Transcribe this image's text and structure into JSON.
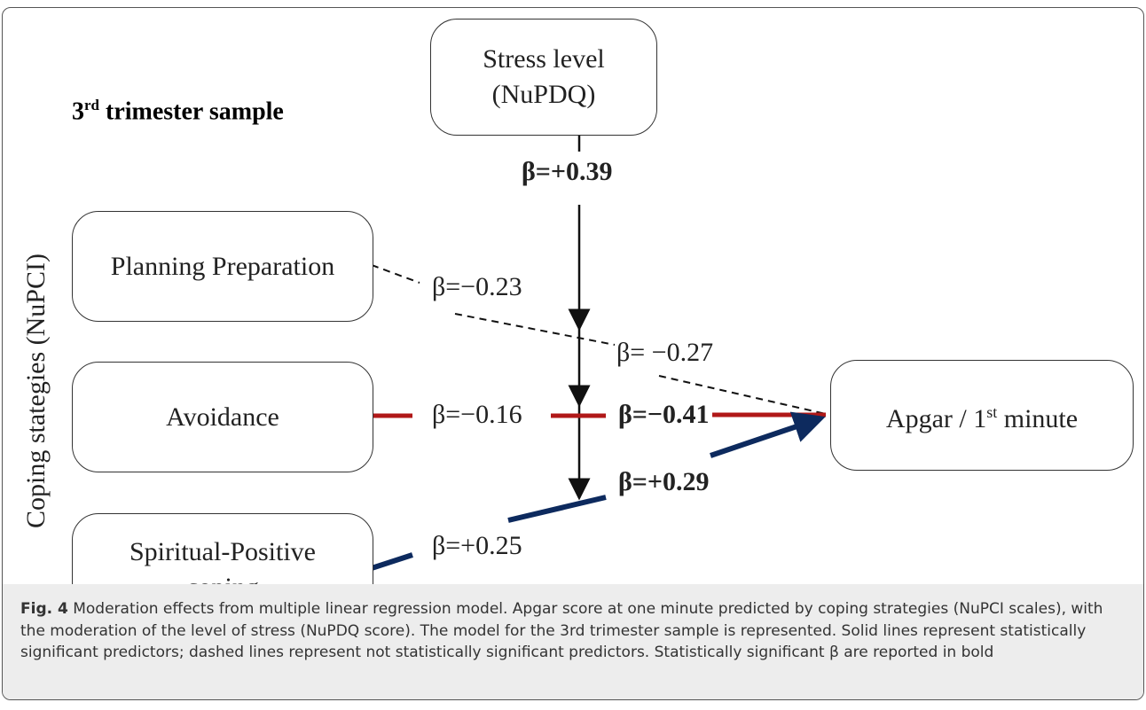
{
  "title": {
    "number": "3",
    "sup": "rd",
    "rest": " trimester sample"
  },
  "side_label": "Coping stategies (NuPCI)",
  "nodes": [
    {
      "lines": [
        "Stress level",
        "(NuPDQ)"
      ]
    },
    {
      "lines": [
        "Planning Preparation"
      ]
    },
    {
      "lines": [
        "Avoidance"
      ]
    },
    {
      "lines": [
        "Spiritual-Positive",
        "coping"
      ]
    },
    {
      "lines": [
        "Apgar / 1",
        "st",
        " minute"
      ]
    }
  ],
  "coefficients": [
    "β=+0.39",
    "β=−0.23",
    "β= −0.27",
    "β=−0.16",
    "β=−0.41",
    "β=+0.29",
    "β=+0.25"
  ],
  "caption": {
    "label": "Fig. 4",
    "text": " Moderation effects from multiple linear regression model. Apgar score at one minute predicted by coping strategies (NuPCI scales), with the moderation of the level of stress (NuPDQ score). The model for the 3rd trimester sample is represented. Solid lines represent statistically significant predictors; dashed lines represent not statistically significant predictors. Statistically significant β are reported in bold"
  }
}
